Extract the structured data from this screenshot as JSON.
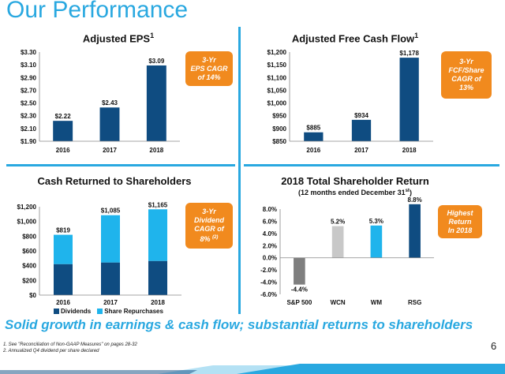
{
  "page_title": "Our Performance",
  "tagline": "Solid growth in earnings & cash flow; substantial returns to shareholders",
  "footnotes": [
    "1. See \"Reconciliation of Non-GAAP Measures\" on pages 28-32",
    "2. Annualized Q4 dividend per share declared"
  ],
  "page_number": "6",
  "colors": {
    "accent": "#29a8e0",
    "dark_blue": "#0f4c81",
    "light_blue": "#1fb4ec",
    "gray": "#7f7f7f",
    "light_gray": "#c8c8c8",
    "orange": "#f18a1e"
  },
  "chart_data": [
    {
      "type": "bar",
      "title": "Adjusted EPS",
      "title_sup": "1",
      "categories": [
        "2016",
        "2017",
        "2018"
      ],
      "values": [
        2.22,
        2.43,
        3.09
      ],
      "value_labels": [
        "$2.22",
        "$2.43",
        "$3.09"
      ],
      "ylim": [
        1.9,
        3.3
      ],
      "yticks": [
        "$1.90",
        "$2.10",
        "$2.30",
        "$2.50",
        "$2.70",
        "$2.90",
        "$3.10",
        "$3.30"
      ],
      "ytick_values": [
        1.9,
        2.1,
        2.3,
        2.5,
        2.7,
        2.9,
        3.1,
        3.3
      ],
      "callout_lines": [
        "3-Yr",
        "EPS CAGR",
        "of 14%"
      ]
    },
    {
      "type": "bar",
      "title": "Adjusted Free Cash Flow",
      "title_sup": "1",
      "categories": [
        "2016",
        "2017",
        "2018"
      ],
      "values": [
        885,
        934,
        1178
      ],
      "value_labels": [
        "$885",
        "$934",
        "$1,178"
      ],
      "ylim": [
        850,
        1200
      ],
      "yticks": [
        "$850",
        "$900",
        "$950",
        "$1,000",
        "$1,050",
        "$1,100",
        "$1,150",
        "$1,200"
      ],
      "ytick_values": [
        850,
        900,
        950,
        1000,
        1050,
        1100,
        1150,
        1200
      ],
      "callout_lines": [
        "3-Yr",
        "FCF/Share",
        "CAGR of",
        "13%"
      ]
    },
    {
      "type": "bar",
      "stacked": true,
      "title": "Cash Returned to Shareholders",
      "categories": [
        "2016",
        "2017",
        "2018"
      ],
      "series": [
        {
          "name": "Dividends",
          "values": [
            421,
            443,
            464
          ]
        },
        {
          "name": "Share Repurchases",
          "values": [
            398,
            642,
            701
          ]
        }
      ],
      "totals": [
        819,
        1085,
        1165
      ],
      "value_labels": [
        "$819",
        "$1,085",
        "$1,165"
      ],
      "ylim": [
        0,
        1200
      ],
      "yticks": [
        "$0",
        "$200",
        "$400",
        "$600",
        "$800",
        "$1,000",
        "$1,200"
      ],
      "ytick_values": [
        0,
        200,
        400,
        600,
        800,
        1000,
        1200
      ],
      "callout_lines": [
        "3-Yr",
        "Dividend",
        "CAGR of",
        "8%"
      ],
      "callout_sup": "(2)"
    },
    {
      "type": "bar",
      "title": "2018 Total Shareholder Return",
      "subtitle": "(12 months ended December 31",
      "subtitle_sup": "st",
      "subtitle_end": ")",
      "categories": [
        "S&P 500",
        "WCN",
        "WM",
        "RSG"
      ],
      "values": [
        -4.4,
        5.2,
        5.3,
        8.8
      ],
      "value_labels": [
        "-4.4%",
        "5.2%",
        "5.3%",
        "8.8%"
      ],
      "ylim": [
        -6,
        8
      ],
      "yticks": [
        "-6.0%",
        "-4.0%",
        "-2.0%",
        "0.0%",
        "2.0%",
        "4.0%",
        "6.0%",
        "8.0%"
      ],
      "ytick_values": [
        -6,
        -4,
        -2,
        0,
        2,
        4,
        6,
        8
      ],
      "callout_lines": [
        "Highest",
        "Return",
        "In 2018"
      ]
    }
  ]
}
